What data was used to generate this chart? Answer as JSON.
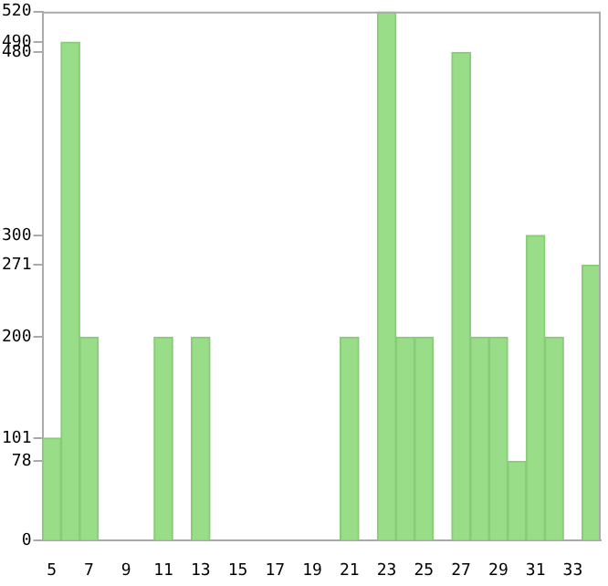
{
  "chart_data": {
    "type": "bar",
    "categories": [
      "5",
      null,
      "7",
      null,
      "9",
      null,
      "11",
      null,
      "13",
      null,
      "15",
      null,
      "17",
      null,
      "19",
      null,
      "21",
      null,
      "23",
      null,
      "25",
      null,
      "27",
      null,
      "29",
      null,
      "31",
      null,
      "33",
      null
    ],
    "values": [
      101,
      490,
      200,
      0,
      0,
      0,
      200,
      0,
      200,
      0,
      0,
      0,
      0,
      0,
      0,
      0,
      200,
      0,
      520,
      200,
      200,
      0,
      480,
      200,
      200,
      78,
      300,
      200,
      0,
      271
    ],
    "color": "#99dd88",
    "ylim": [
      0,
      520
    ],
    "yticks": [
      0,
      78,
      101,
      200,
      271,
      300,
      480,
      490,
      520
    ],
    "grid": false,
    "legend": false
  }
}
